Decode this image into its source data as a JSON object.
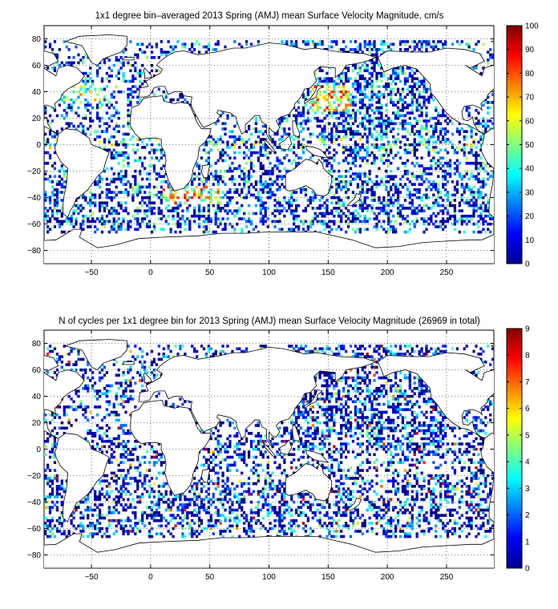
{
  "panels": [
    {
      "id": "velocity",
      "title": "1x1 degree bin–averaged 2013 Spring (AMJ) mean Surface Velocity Magnitude, cm/s",
      "xticks": [
        -50,
        0,
        50,
        100,
        150,
        200,
        250
      ],
      "yticks": [
        80,
        60,
        40,
        20,
        0,
        -20,
        -40,
        -60,
        -80
      ],
      "xlim": [
        -90,
        290
      ],
      "ylim": [
        -90,
        90
      ],
      "colorbar": {
        "min": 0,
        "max": 100,
        "ticks": [
          0,
          10,
          20,
          30,
          40,
          50,
          60,
          70,
          80,
          90,
          100
        ]
      }
    },
    {
      "id": "cycles",
      "title": "N of cycles per 1x1 degree bin for 2013 Spring (AMJ) mean Surface Velocity Magnitude (26969 in total)",
      "xticks": [
        -50,
        0,
        50,
        100,
        150,
        200,
        250
      ],
      "yticks": [
        80,
        60,
        40,
        20,
        0,
        -20,
        -40,
        -60,
        -80
      ],
      "xlim": [
        -90,
        290
      ],
      "ylim": [
        -90,
        90
      ],
      "colorbar": {
        "min": 0,
        "max": 9,
        "ticks": [
          0,
          1,
          2,
          3,
          4,
          5,
          6,
          7,
          8,
          9
        ]
      }
    }
  ],
  "colormap": "jet",
  "grid": "dotted"
}
